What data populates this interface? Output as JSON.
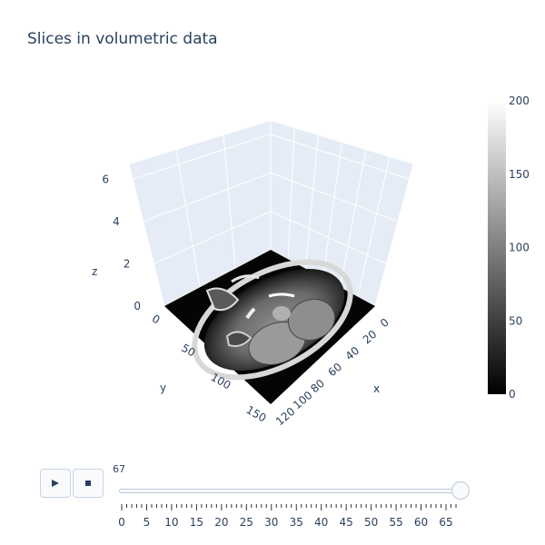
{
  "chart_data": {
    "type": "heatmap",
    "title": "Slices in volumetric data",
    "scene": {
      "x": {
        "title": "x",
        "range": [
          0,
          120
        ],
        "ticks": [
          0,
          20,
          40,
          60,
          80,
          100,
          120
        ]
      },
      "y": {
        "title": "y",
        "range": [
          0,
          150
        ],
        "ticks": [
          0,
          50,
          100,
          150
        ]
      },
      "z": {
        "title": "z",
        "range": [
          0,
          6.7
        ],
        "ticks": [
          0,
          2,
          4,
          6
        ]
      }
    },
    "surface_z": 0,
    "colorscale": "Gray",
    "colorbar": {
      "range": [
        0,
        200
      ],
      "ticks": [
        0,
        50,
        100,
        150,
        200
      ]
    },
    "slider": {
      "current_value": "67",
      "ticks": [
        "0",
        "5",
        "10",
        "15",
        "20",
        "25",
        "30",
        "35",
        "40",
        "45",
        "50",
        "55",
        "60",
        "65"
      ],
      "min": 0,
      "max": 67,
      "value": 67
    }
  },
  "controls": {
    "play_icon": "play-icon",
    "stop_icon": "stop-icon"
  },
  "colors": {
    "grid": "#ffffff",
    "pane": "#e5ecf6",
    "text": "#2a3f5f",
    "button": "#f8fafc",
    "border": "#c8d4e3"
  }
}
